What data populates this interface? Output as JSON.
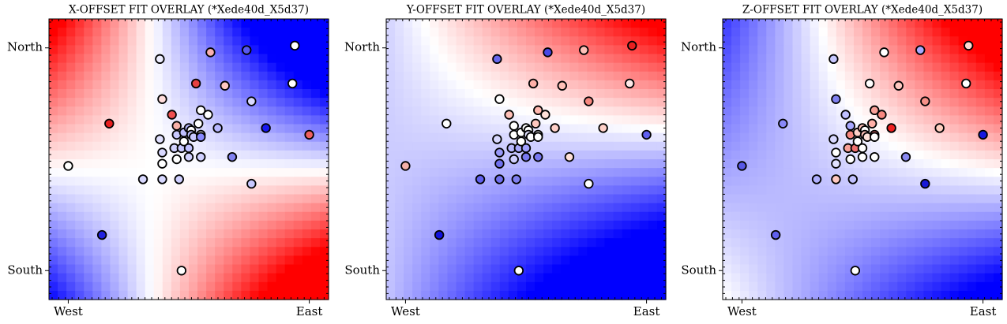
{
  "chart_data": [
    {
      "type": "scatter",
      "title": "X-OFFSET FIT OVERLAY (*Xede40d_X5d37)",
      "x": [
        0.0,
        0.14,
        0.17,
        0.31,
        0.38,
        0.39,
        0.38,
        0.39,
        0.39,
        0.39,
        0.43,
        0.44,
        0.45,
        0.45,
        0.46,
        0.47,
        0.45,
        0.47,
        0.48,
        0.48,
        0.5,
        0.5,
        0.5,
        0.51,
        0.51,
        0.52,
        0.53,
        0.54,
        0.55,
        0.55,
        0.55,
        0.55,
        0.58,
        0.59,
        0.62,
        0.65,
        0.68,
        0.74,
        0.76,
        0.76,
        0.82,
        0.93,
        0.94,
        1.0
      ],
      "y": [
        0.47,
        0.16,
        0.66,
        0.41,
        0.95,
        0.77,
        0.59,
        0.48,
        0.41,
        0.53,
        0.7,
        0.55,
        0.65,
        0.5,
        0.41,
        0.0,
        0.61,
        0.55,
        0.58,
        0.62,
        0.64,
        0.55,
        0.51,
        0.63,
        0.61,
        0.6,
        0.84,
        0.66,
        0.61,
        0.72,
        0.6,
        0.51,
        0.7,
        0.98,
        0.64,
        0.83,
        0.51,
        0.99,
        0.76,
        0.39,
        0.64,
        0.84,
        1.01,
        0.61
      ],
      "colors": [
        "#ffffff",
        "#2020e0",
        "#e82020",
        "#d8d8ff",
        "#eeeeff",
        "#ffdcdc",
        "#e0e0ff",
        "#ffffff",
        "#d8d8ff",
        "#d8d8ff",
        "#f05050",
        "#d0d0ff",
        "#f8b0a8",
        "#ffffff",
        "#d0d0ff",
        "#ffffff",
        "#c8c8ff",
        "#c8c8ff",
        "#ffffff",
        "#c0c0ff",
        "#b8b8ff",
        "#c0c0ff",
        "#d0d0ff",
        "#ffffff",
        "#c0c0ff",
        "#c8c8ff",
        "#e84040",
        "#ffffff",
        "#ffffff",
        "#ffffff",
        "#8888ff",
        "#d0d0ff",
        "#ffffff",
        "#f8b0b0",
        "#b8b8ff",
        "#ffc8c0",
        "#8080f0",
        "#5858f0",
        "#d8d8ff",
        "#c8c8ff",
        "#1818f0",
        "#ffffff",
        "#ffffff",
        "#f06060"
      ],
      "xlim": [
        -0.08,
        1.08
      ],
      "ylim": [
        -0.13,
        1.13
      ],
      "xticks": [
        {
          "value": 0,
          "label": "West"
        },
        {
          "value": 1,
          "label": "East"
        }
      ],
      "yticks": [
        {
          "value": 0,
          "label": "South"
        },
        {
          "value": 1,
          "label": "North"
        }
      ]
    },
    {
      "type": "scatter",
      "title": "Y-OFFSET FIT OVERLAY (*Xede40d_X5d37)",
      "x": [
        0.0,
        0.14,
        0.17,
        0.31,
        0.38,
        0.39,
        0.38,
        0.39,
        0.39,
        0.39,
        0.43,
        0.44,
        0.45,
        0.45,
        0.46,
        0.47,
        0.45,
        0.47,
        0.48,
        0.48,
        0.5,
        0.5,
        0.5,
        0.51,
        0.51,
        0.52,
        0.53,
        0.54,
        0.55,
        0.55,
        0.55,
        0.55,
        0.58,
        0.59,
        0.62,
        0.65,
        0.68,
        0.74,
        0.76,
        0.76,
        0.82,
        0.93,
        0.94,
        1.0
      ],
      "y": [
        0.47,
        0.16,
        0.66,
        0.41,
        0.95,
        0.77,
        0.59,
        0.48,
        0.41,
        0.53,
        0.7,
        0.55,
        0.65,
        0.5,
        0.41,
        0.0,
        0.61,
        0.55,
        0.58,
        0.62,
        0.64,
        0.55,
        0.51,
        0.63,
        0.61,
        0.6,
        0.84,
        0.66,
        0.61,
        0.72,
        0.6,
        0.51,
        0.7,
        0.98,
        0.64,
        0.83,
        0.51,
        0.99,
        0.76,
        0.39,
        0.64,
        0.84,
        1.01,
        0.61
      ],
      "colors": [
        "#f4b0a8",
        "#1010e0",
        "#ffffff",
        "#6060ee",
        "#6868ee",
        "#ffffff",
        "#d8d8ff",
        "#7070ee",
        "#7070ee",
        "#9898f8",
        "#ffc0b8",
        "#b8b8ff",
        "#ffffff",
        "#d0d0ff",
        "#8080f0",
        "#ffffff",
        "#ffffff",
        "#a8a8ff",
        "#ffffff",
        "#ffffff",
        "#ffffff",
        "#a0a0ff",
        "#7878f0",
        "#ffffff",
        "#e0e0ff",
        "#ffffff",
        "#ffb0a8",
        "#ffc8c0",
        "#ffffff",
        "#ffb8b0",
        "#ffffff",
        "#7878f0",
        "#ffe0d8",
        "#4848e8",
        "#ffd0c8",
        "#ffc0b8",
        "#ffe0d8",
        "#ffc0b8",
        "#f88880",
        "#ffffff",
        "#ffd0c8",
        "#ffe8e8",
        "#e82020",
        "#6060f0"
      ],
      "xlim": [
        -0.08,
        1.08
      ],
      "ylim": [
        -0.13,
        1.13
      ],
      "xticks": [
        {
          "value": 0,
          "label": "West"
        },
        {
          "value": 1,
          "label": "East"
        }
      ],
      "yticks": [
        {
          "value": 0,
          "label": "South"
        },
        {
          "value": 1,
          "label": "North"
        }
      ]
    },
    {
      "type": "scatter",
      "title": "Z-OFFSET FIT OVERLAY (*Xede40d_X5d37)",
      "x": [
        0.0,
        0.14,
        0.17,
        0.31,
        0.38,
        0.39,
        0.38,
        0.39,
        0.39,
        0.39,
        0.43,
        0.44,
        0.45,
        0.45,
        0.46,
        0.47,
        0.45,
        0.47,
        0.48,
        0.48,
        0.5,
        0.5,
        0.5,
        0.51,
        0.51,
        0.52,
        0.53,
        0.54,
        0.55,
        0.55,
        0.55,
        0.55,
        0.58,
        0.59,
        0.62,
        0.65,
        0.68,
        0.74,
        0.76,
        0.76,
        0.82,
        0.93,
        0.94,
        1.0
      ],
      "y": [
        0.47,
        0.16,
        0.66,
        0.41,
        0.95,
        0.77,
        0.59,
        0.48,
        0.41,
        0.53,
        0.7,
        0.55,
        0.65,
        0.5,
        0.41,
        0.0,
        0.61,
        0.55,
        0.58,
        0.62,
        0.64,
        0.55,
        0.51,
        0.63,
        0.61,
        0.6,
        0.84,
        0.66,
        0.61,
        0.72,
        0.6,
        0.51,
        0.7,
        0.98,
        0.64,
        0.83,
        0.51,
        0.99,
        0.76,
        0.39,
        0.64,
        0.84,
        1.01,
        0.61
      ],
      "colors": [
        "#5858e8",
        "#6060ee",
        "#8888f8",
        "#b0b0ff",
        "#c8c8ff",
        "#8080f0",
        "#d8d8ff",
        "#e0e0ff",
        "#ffc8c0",
        "#ffffff",
        "#c0c0ff",
        "#f8a098",
        "#a8a8ff",
        "#ffffff",
        "#c0c0ff",
        "#ffffff",
        "#f88880",
        "#f07070",
        "#ffffff",
        "#ffd0c8",
        "#ffc0b8",
        "#ffffff",
        "#ffffff",
        "#ffffff",
        "#ffc0b8",
        "#ffe0d8",
        "#ffffff",
        "#ffb0a8",
        "#f07070",
        "#f8a098",
        "#ffffff",
        "#ffffff",
        "#f88880",
        "#ffffff",
        "#f02020",
        "#ffc8c0",
        "#8888f0",
        "#a8a8ff",
        "#f89088",
        "#1818d8",
        "#ffd0c0",
        "#ffffff",
        "#ffd8d0",
        "#1818e0"
      ],
      "xlim": [
        -0.08,
        1.08
      ],
      "ylim": [
        -0.13,
        1.13
      ],
      "xticks": [
        {
          "value": 0,
          "label": "West"
        },
        {
          "value": 1,
          "label": "East"
        }
      ],
      "yticks": [
        {
          "value": 0,
          "label": "South"
        },
        {
          "value": 1,
          "label": "North"
        }
      ]
    }
  ]
}
